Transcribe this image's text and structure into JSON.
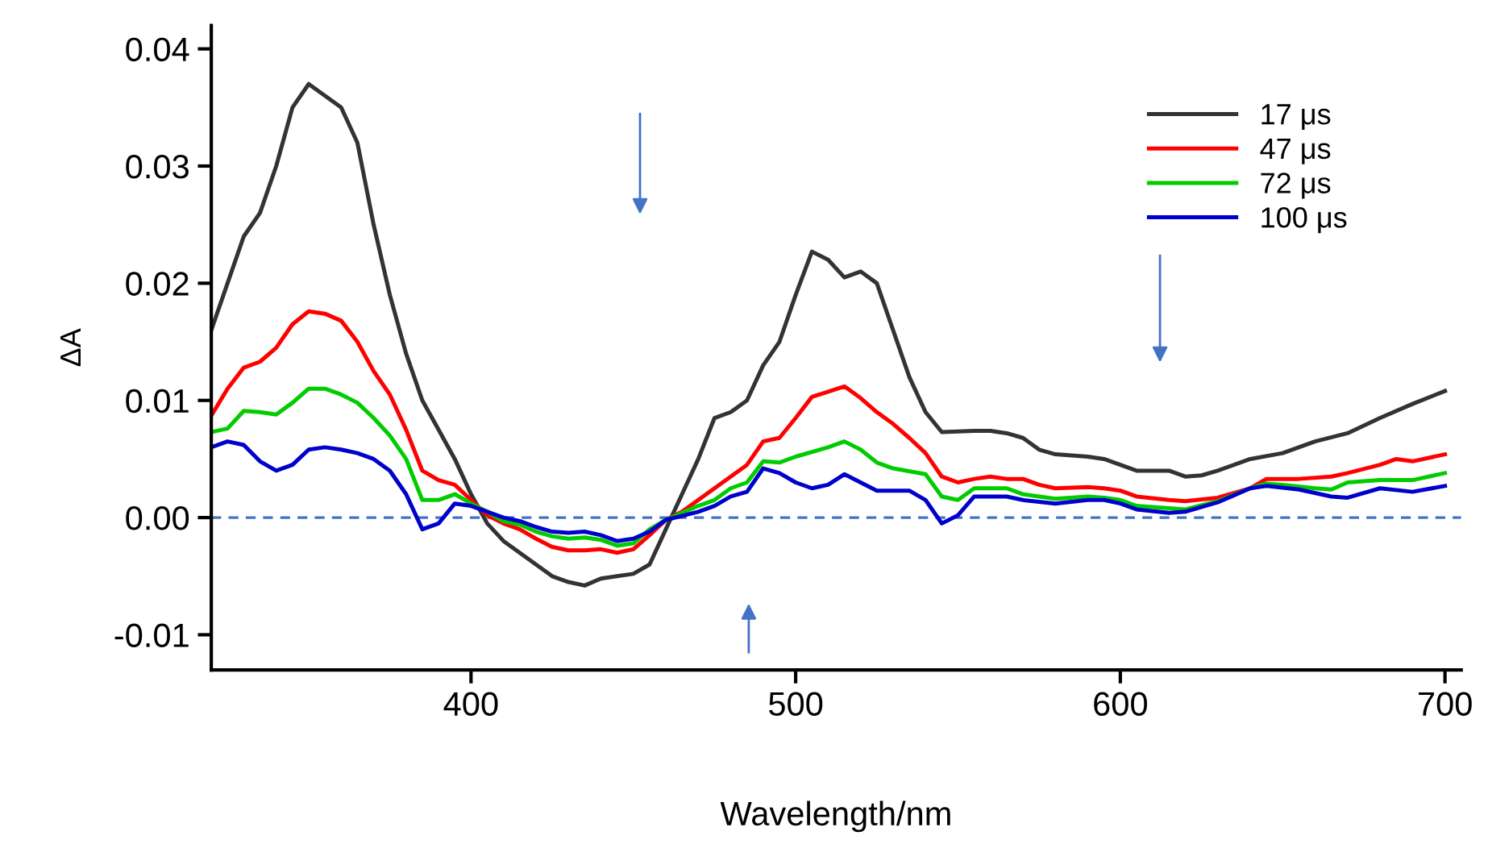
{
  "chart_data": {
    "type": "line",
    "xlabel": "Wavelength/nm",
    "ylabel": "ΔA",
    "xlim": [
      320,
      705
    ],
    "ylim": [
      -0.013,
      0.042
    ],
    "xticks": [
      400,
      500,
      600,
      700
    ],
    "yticks": [
      {
        "value": -0.01,
        "label": "-0.01"
      },
      {
        "value": 0.0,
        "label": "0.00"
      },
      {
        "value": 0.01,
        "label": "0.01"
      },
      {
        "value": 0.02,
        "label": "0.02"
      },
      {
        "value": 0.03,
        "label": "0.03"
      },
      {
        "value": 0.04,
        "label": "0.04"
      }
    ],
    "grid": false,
    "legend": "top right",
    "line_style": "solid",
    "marker": "none",
    "ref_lines": [
      {
        "axis": "y",
        "value": 0,
        "color": "#4472c4",
        "line_style": "dashed"
      }
    ],
    "series": [
      {
        "name": "17 μs",
        "color": "#333333",
        "x": [
          320,
          325,
          330,
          335,
          340,
          345,
          350,
          360,
          365,
          370,
          375,
          380,
          385,
          390,
          395,
          400,
          405,
          410,
          415,
          420,
          425,
          430,
          435,
          440,
          445,
          450,
          455,
          460,
          465,
          470,
          475,
          480,
          485,
          490,
          495,
          500,
          505,
          510,
          515,
          520,
          525,
          530,
          535,
          540,
          545,
          555,
          560,
          565,
          570,
          575,
          580,
          590,
          595,
          600,
          605,
          615,
          620,
          625,
          630,
          640,
          650,
          660,
          670,
          680,
          690,
          700
        ],
        "values": [
          0.016,
          0.02,
          0.024,
          0.026,
          0.03,
          0.035,
          0.037,
          0.035,
          0.032,
          0.025,
          0.019,
          0.014,
          0.01,
          0.0075,
          0.005,
          0.002,
          -0.0005,
          -0.002,
          -0.003,
          -0.004,
          -0.005,
          -0.0055,
          -0.0058,
          -0.0052,
          -0.005,
          -0.0048,
          -0.004,
          -0.001,
          0.002,
          0.005,
          0.0085,
          0.009,
          0.01,
          0.013,
          0.015,
          0.019,
          0.0227,
          0.022,
          0.0205,
          0.021,
          0.02,
          0.016,
          0.012,
          0.009,
          0.0073,
          0.0074,
          0.0074,
          0.0072,
          0.0068,
          0.0058,
          0.0054,
          0.0052,
          0.005,
          0.0045,
          0.004,
          0.004,
          0.0035,
          0.0036,
          0.004,
          0.005,
          0.0055,
          0.0065,
          0.0072,
          0.0085,
          0.0097,
          0.0108
        ]
      },
      {
        "name": "47 μs",
        "color": "#ff0000",
        "x": [
          320,
          325,
          330,
          335,
          340,
          345,
          350,
          355,
          360,
          365,
          370,
          375,
          380,
          385,
          390,
          395,
          400,
          405,
          410,
          415,
          420,
          425,
          430,
          435,
          440,
          445,
          450,
          455,
          460,
          465,
          470,
          475,
          480,
          485,
          490,
          495,
          500,
          505,
          515,
          520,
          525,
          530,
          535,
          540,
          545,
          550,
          555,
          560,
          565,
          570,
          575,
          580,
          590,
          595,
          600,
          605,
          615,
          620,
          630,
          640,
          645,
          655,
          665,
          670,
          680,
          685,
          690,
          700
        ],
        "values": [
          0.0087,
          0.011,
          0.0128,
          0.0133,
          0.0145,
          0.0165,
          0.0176,
          0.0174,
          0.0168,
          0.015,
          0.0125,
          0.0105,
          0.0075,
          0.004,
          0.0032,
          0.0028,
          0.0015,
          0.0002,
          -0.0005,
          -0.001,
          -0.0018,
          -0.0025,
          -0.0028,
          -0.0028,
          -0.0027,
          -0.003,
          -0.0027,
          -0.0015,
          -0.0002,
          0.0005,
          0.0015,
          0.0025,
          0.0035,
          0.0045,
          0.0065,
          0.0068,
          0.0085,
          0.0103,
          0.0112,
          0.0102,
          0.009,
          0.008,
          0.0068,
          0.0055,
          0.0035,
          0.003,
          0.0033,
          0.0035,
          0.0033,
          0.0033,
          0.0028,
          0.0025,
          0.0026,
          0.0025,
          0.0023,
          0.0018,
          0.0015,
          0.0014,
          0.0017,
          0.0025,
          0.0033,
          0.0033,
          0.0035,
          0.0038,
          0.0045,
          0.005,
          0.0048,
          0.0054
        ]
      },
      {
        "name": "72 μs",
        "color": "#00cc00",
        "x": [
          320,
          325,
          330,
          335,
          340,
          345,
          350,
          355,
          360,
          365,
          370,
          375,
          380,
          385,
          390,
          395,
          400,
          405,
          410,
          415,
          420,
          425,
          430,
          435,
          440,
          445,
          450,
          455,
          460,
          470,
          475,
          480,
          485,
          490,
          495,
          500,
          510,
          515,
          520,
          525,
          530,
          540,
          545,
          550,
          555,
          560,
          565,
          570,
          575,
          580,
          590,
          595,
          600,
          605,
          615,
          620,
          630,
          640,
          645,
          650,
          660,
          665,
          670,
          680,
          690,
          700
        ],
        "values": [
          0.0073,
          0.0076,
          0.0091,
          0.009,
          0.0088,
          0.0098,
          0.011,
          0.011,
          0.0105,
          0.0098,
          0.0085,
          0.007,
          0.005,
          0.0015,
          0.0015,
          0.002,
          0.0012,
          0.0005,
          -0.0003,
          -0.0006,
          -0.0012,
          -0.0016,
          -0.0018,
          -0.0017,
          -0.0019,
          -0.0024,
          -0.0022,
          -0.001,
          -0.0002,
          0.001,
          0.0015,
          0.0025,
          0.003,
          0.0048,
          0.0047,
          0.0052,
          0.006,
          0.0065,
          0.0058,
          0.0047,
          0.0042,
          0.0037,
          0.0018,
          0.0015,
          0.0025,
          0.0025,
          0.0025,
          0.002,
          0.0018,
          0.0016,
          0.0018,
          0.0017,
          0.0015,
          0.001,
          0.0008,
          0.0007,
          0.0014,
          0.0025,
          0.0029,
          0.0028,
          0.0025,
          0.0024,
          0.003,
          0.0032,
          0.0032,
          0.0038
        ]
      },
      {
        "name": "100 μs",
        "color": "#0000cc",
        "x": [
          320,
          325,
          330,
          335,
          340,
          345,
          350,
          355,
          360,
          365,
          370,
          375,
          380,
          385,
          390,
          395,
          400,
          405,
          410,
          415,
          420,
          425,
          430,
          435,
          440,
          445,
          450,
          455,
          460,
          470,
          475,
          480,
          485,
          490,
          495,
          500,
          505,
          510,
          515,
          520,
          525,
          535,
          540,
          545,
          550,
          555,
          565,
          570,
          580,
          590,
          595,
          600,
          605,
          615,
          620,
          630,
          640,
          645,
          655,
          665,
          670,
          680,
          690,
          700
        ],
        "values": [
          0.006,
          0.0065,
          0.0062,
          0.0048,
          0.004,
          0.0045,
          0.0058,
          0.006,
          0.0058,
          0.0055,
          0.005,
          0.004,
          0.002,
          -0.001,
          -0.0005,
          0.0012,
          0.001,
          0.0005,
          0.0,
          -0.0003,
          -0.0008,
          -0.0012,
          -0.0013,
          -0.0012,
          -0.0015,
          -0.002,
          -0.0018,
          -0.0012,
          -0.0002,
          0.0005,
          0.001,
          0.0018,
          0.0022,
          0.0042,
          0.0038,
          0.003,
          0.0025,
          0.0028,
          0.0037,
          0.003,
          0.0023,
          0.0023,
          0.0015,
          -0.0005,
          0.0002,
          0.0018,
          0.0018,
          0.0015,
          0.0012,
          0.0015,
          0.0015,
          0.0012,
          0.0007,
          0.0004,
          0.0005,
          0.0013,
          0.0025,
          0.0027,
          0.0024,
          0.0018,
          0.0017,
          0.0025,
          0.0022,
          0.0027
        ]
      }
    ]
  }
}
